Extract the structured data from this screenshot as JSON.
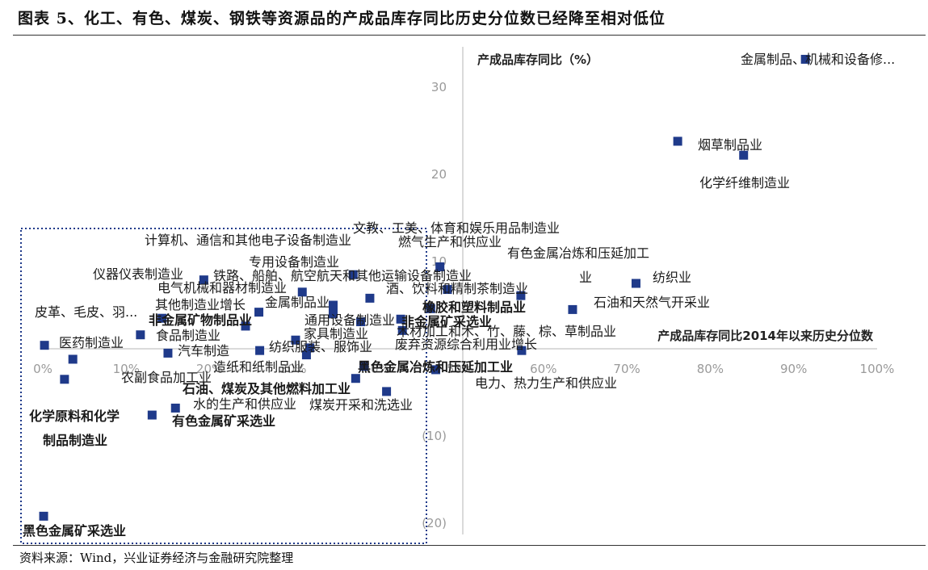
{
  "header": {
    "title": "图表 5、化工、有色、煤炭、钢铁等资源品的产成品库存同比历史分位数已经降至相对低位"
  },
  "footer": {
    "source": "资料来源：Wind，兴业证券经济与金融研究院整理"
  },
  "chart_data": {
    "type": "scatter",
    "title": "",
    "xlabel": "产成品库存同比2014年以来历史分位数",
    "ylabel": "产成品库存同比（%）",
    "xlim": [
      0,
      100
    ],
    "ylim": [
      -20,
      35
    ],
    "x_unit": "%",
    "x_ticks": [
      0,
      10,
      20,
      30,
      40,
      50,
      60,
      70,
      80,
      90,
      100
    ],
    "y_ticks": [
      -20,
      -10,
      10,
      20,
      30
    ],
    "x_tick_labels": [
      "0%",
      "10%",
      "20%",
      "30%",
      "40%",
      "50%",
      "60%",
      "70%",
      "80%",
      "90%",
      "100%"
    ],
    "y_tick_labels": [
      "(20)",
      "(10)",
      "10",
      "20",
      "30"
    ],
    "marker_color": "#1f3a8a",
    "grid": false,
    "highlight_box": "lower-left dotted rectangle",
    "points": [
      {
        "name": "金属制品、机械和设备修...",
        "x": 91.4,
        "y": 33.2,
        "bold": false
      },
      {
        "name": "烟草制品业",
        "x": 76.1,
        "y": 23.8,
        "bold": false
      },
      {
        "name": "化学纤维制造业",
        "x": 84.0,
        "y": 22.2,
        "bold": false
      },
      {
        "name": "文教、工美、体育和娱乐用品制造业",
        "x": 47.6,
        "y": 9.4,
        "bold": false
      },
      {
        "name": "计算机、通信和其他电子设备制造业",
        "x": 37.2,
        "y": 8.5,
        "bold": false
      },
      {
        "name": "燃气生产和供应业",
        "x": 48.5,
        "y": 6.8,
        "bold": false
      },
      {
        "name": "有色金属冶炼和压延加工业",
        "x": 57.3,
        "y": 6.1,
        "bold": false
      },
      {
        "name": "纺织业",
        "x": 71.1,
        "y": 7.5,
        "bold": false
      },
      {
        "name": "专用设备制造业",
        "x": 31.1,
        "y": 6.5,
        "bold": false
      },
      {
        "name": "仪器仪表制造业",
        "x": 19.3,
        "y": 7.9,
        "bold": false
      },
      {
        "name": "铁路、船舶、航空航天和其他运输设备制造业",
        "x": 39.2,
        "y": 5.8,
        "bold": false
      },
      {
        "name": "酒、饮料和精制茶制造业",
        "x": 46.5,
        "y": 4.6,
        "bold": false
      },
      {
        "name": "电气机械和器材制造业",
        "x": 34.8,
        "y": 5.0,
        "bold": false
      },
      {
        "name": "石油和天然气开采业",
        "x": 63.5,
        "y": 4.5,
        "bold": false
      },
      {
        "name": "其他制造业",
        "x": 25.9,
        "y": 4.2,
        "bold": false
      },
      {
        "name": "金属制品业",
        "x": 34.8,
        "y": 4.0,
        "bold": false
      },
      {
        "name": "橡胶和塑料制品业",
        "x": 42.9,
        "y": 3.4,
        "bold": true
      },
      {
        "name": "皮革、毛皮、羽...",
        "x": 14.3,
        "y": 3.5,
        "bold": false
      },
      {
        "name": "非金属矿物制品业",
        "x": 24.3,
        "y": 2.6,
        "bold": true
      },
      {
        "name": "通用设备制造业",
        "x": 38.1,
        "y": 3.1,
        "bold": false
      },
      {
        "name": "非金属矿采选业",
        "x": 43.1,
        "y": 2.1,
        "bold": true
      },
      {
        "name": "医药制造业",
        "x": 0.2,
        "y": 0.4,
        "bold": false
      },
      {
        "name": "食品制造业",
        "x": 11.7,
        "y": 1.6,
        "bold": false
      },
      {
        "name": "家具制造业",
        "x": 30.3,
        "y": 1.0,
        "bold": false
      },
      {
        "name": "木材加工和木、竹、藤、棕、草制品业",
        "x": 57.4,
        "y": -0.2,
        "bold": false
      },
      {
        "name": "汽车制造",
        "x": 15.0,
        "y": -0.5,
        "bold": false
      },
      {
        "name": "纺织服装、服饰业",
        "x": 32.0,
        "y": 0.1,
        "bold": false
      },
      {
        "name": "造纸和纸制品业",
        "x": 26.0,
        "y": -0.2,
        "bold": false
      },
      {
        "name": "废弃资源综合利用业",
        "x": 31.6,
        "y": -0.7,
        "bold": false
      },
      {
        "name": "农副食品加工业",
        "x": 3.6,
        "y": -1.2,
        "bold": false
      },
      {
        "name": "黑色金属冶炼和压延加工业",
        "x": 38.5,
        "y": -2.0,
        "bold": true
      },
      {
        "name": "电力、热力生产和供应业",
        "x": 47.1,
        "y": -2.4,
        "bold": false
      },
      {
        "name": "石油、煤炭及其他燃料加工业",
        "x": 37.5,
        "y": -3.4,
        "bold": true
      },
      {
        "name": "化学原料和化学制品制造业",
        "x": 2.6,
        "y": -3.5,
        "bold": true
      },
      {
        "name": "水的生产和供应业",
        "x": 15.9,
        "y": -6.8,
        "bold": false
      },
      {
        "name": "煤炭开采和洗选业",
        "x": 41.2,
        "y": -4.9,
        "bold": false
      },
      {
        "name": "有色金属矿采选业",
        "x": 13.1,
        "y": -7.6,
        "bold": true
      },
      {
        "name": "黑色金属矿采选业",
        "x": 0.1,
        "y": -19.2,
        "bold": true
      }
    ],
    "label_texts": [
      {
        "text": "金属制品、机械和设备修...",
        "bold": false
      },
      {
        "text": "烟草制品业",
        "bold": false
      },
      {
        "text": "化学纤维制造业",
        "bold": false
      },
      {
        "text": "文教、工美、体育和娱乐用品制造业",
        "bold": false
      },
      {
        "text": "计算机、通信和其他电子设备制造业",
        "bold": false
      },
      {
        "text": "燃气生产和供应业",
        "bold": false
      },
      {
        "text": "有色金属冶炼和压延加工",
        "bold": false
      },
      {
        "text": "业",
        "bold": false
      },
      {
        "text": "纺织业",
        "bold": false
      },
      {
        "text": "专用设备制造业",
        "bold": false
      },
      {
        "text": "仪器仪表制造业",
        "bold": false
      },
      {
        "text": "铁路、船舶、航空航天和其他运输设备制造业",
        "bold": false
      },
      {
        "text": "电气机械和器材制造业",
        "bold": false
      },
      {
        "text": "酒、饮料和精制茶制造业",
        "bold": false
      },
      {
        "text": "石油和天然气开采业",
        "bold": false
      },
      {
        "text": "其他制造业增长",
        "bold": false
      },
      {
        "text": "金属制品业",
        "bold": false
      },
      {
        "text": "橡胶和塑料制品业",
        "bold": true
      },
      {
        "text": "皮革、毛皮、羽...",
        "bold": false
      },
      {
        "text": "非金属矿物制品业",
        "bold": true
      },
      {
        "text": "通用设备制造业",
        "bold": false
      },
      {
        "text": "非金属矿采选业",
        "bold": true
      },
      {
        "text": "医药制造业",
        "bold": false
      },
      {
        "text": "食品制造业",
        "bold": false
      },
      {
        "text": "家具制造业",
        "bold": false
      },
      {
        "text": "木材加工和木、竹、藤、棕、草制品业",
        "bold": false
      },
      {
        "text": "汽车制造",
        "bold": false
      },
      {
        "text": "纺织服装、服饰业",
        "bold": false
      },
      {
        "text": "废弃资源综合利用业增长",
        "bold": false
      },
      {
        "text": "造纸和纸制品业",
        "bold": false
      },
      {
        "text": "农副食品加工业",
        "bold": false
      },
      {
        "text": "黑色金属冶炼和压延加工业",
        "bold": true
      },
      {
        "text": "电力、热力生产和供应业",
        "bold": false
      },
      {
        "text": "石油、煤炭及其他燃料加工业",
        "bold": true
      },
      {
        "text": "水的生产和供应业",
        "bold": false
      },
      {
        "text": "煤炭开采和洗选业",
        "bold": false
      },
      {
        "text": "化学原料和化学",
        "bold": true
      },
      {
        "text": "制品制造业",
        "bold": true
      },
      {
        "text": "有色金属矿采选业",
        "bold": true
      },
      {
        "text": "黑色金属矿采选业",
        "bold": true
      }
    ]
  }
}
